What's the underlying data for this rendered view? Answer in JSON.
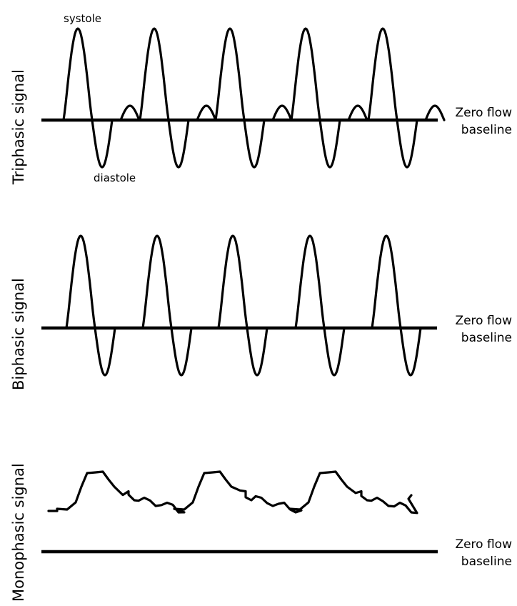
{
  "colors": {
    "stroke": "#000000",
    "background": "#ffffff"
  },
  "panels": [
    {
      "label": "Triphasic signal",
      "baseline_label_line1": "Zero flow",
      "baseline_label_line2": "baseline",
      "annotations": {
        "peak": "systole",
        "trough": "diastole"
      }
    },
    {
      "label": "Biphasic signal",
      "baseline_label_line1": "Zero flow",
      "baseline_label_line2": "baseline"
    },
    {
      "label": "Monophasic signal",
      "baseline_label_line1": "Zero flow",
      "baseline_label_line2": "baseline"
    }
  ]
}
